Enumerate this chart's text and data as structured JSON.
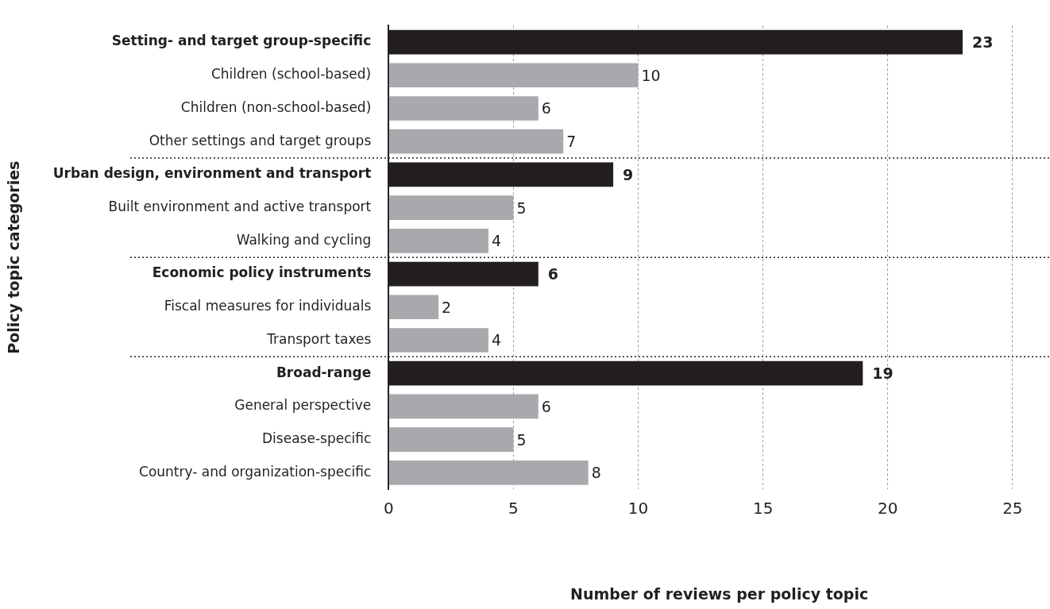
{
  "chart_data": {
    "type": "bar",
    "orientation": "horizontal",
    "xlabel": "Number of reviews per policy topic",
    "ylabel": "Policy topic categories",
    "categories": [
      "Setting- and target group-specific",
      "Children (school-based)",
      "Children (non-school-based)",
      "Other settings and target groups",
      "Urban design, environment and transport",
      "Built environment and active transport",
      "Walking and cycling",
      "Economic policy instruments",
      "Fiscal measures for individuals",
      "Transport taxes",
      "Broad-range",
      "General perspective",
      "Disease-specific",
      "Country- and organization-specific"
    ],
    "values": [
      23,
      10,
      6,
      7,
      9,
      5,
      4,
      6,
      2,
      4,
      19,
      6,
      5,
      8
    ],
    "colors": [
      "#231f20",
      "#a7a9ac",
      "#a7a9ac",
      "#a7a9ac",
      "#231f20",
      "#a7a9ac",
      "#a7a9ac",
      "#231f20",
      "#a7a9ac",
      "#a7a9ac",
      "#231f20",
      "#a7a9ac",
      "#a7a9ac",
      "#a7a9ac"
    ],
    "xlim": [
      0,
      26.5
    ],
    "xticks": [
      0,
      5,
      10,
      15,
      20,
      25
    ],
    "grid": "x",
    "data_labels": true,
    "legend": false
  }
}
